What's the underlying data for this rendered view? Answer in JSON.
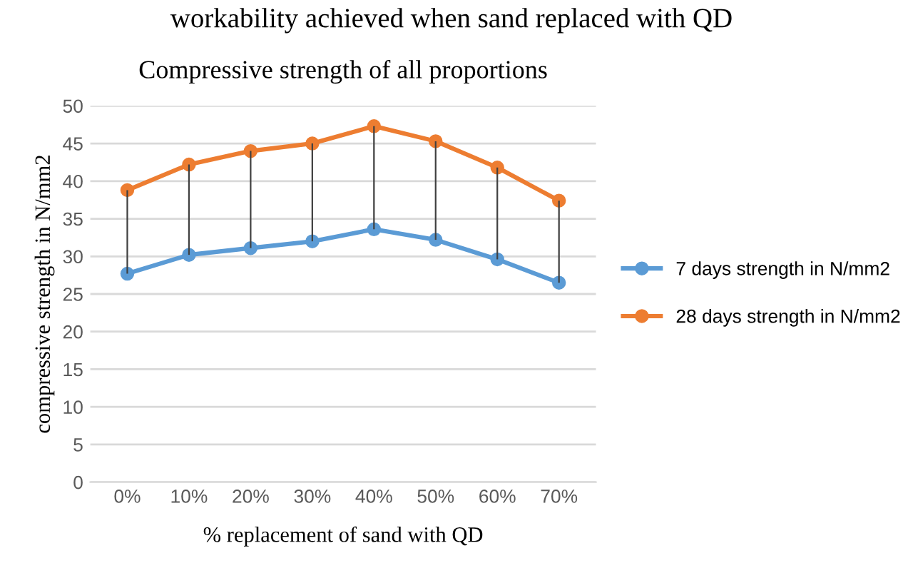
{
  "chart_data": {
    "type": "line",
    "title": "Compressive strength of all proportions",
    "xlabel": "% replacement of sand with QD",
    "ylabel": "compressive strength in N/mm2",
    "annotations": [
      "workability achieved when sand replaced with QD"
    ],
    "categories": [
      "0%",
      "10%",
      "20%",
      "30%",
      "40%",
      "50%",
      "60%",
      "70%"
    ],
    "series": [
      {
        "name": "7 days strength in N/mm2",
        "color": "#5b9bd5",
        "values": [
          27.7,
          30.2,
          31.1,
          32,
          33.6,
          32.2,
          29.6,
          26.5
        ],
        "errors": [
          [
            27.7,
            38.8
          ],
          [
            30.2,
            42.2
          ],
          [
            31.1,
            44
          ],
          [
            32,
            45
          ],
          [
            33.6,
            47.3
          ],
          [
            32.2,
            45.3
          ],
          [
            29.6,
            41.8
          ],
          [
            26.5,
            37.4
          ]
        ]
      },
      {
        "name": "28 days strength in N/mm2",
        "color": "#ed7d31",
        "values": [
          38.8,
          42.2,
          44,
          45,
          47.3,
          45.3,
          41.8,
          37.4
        ]
      }
    ],
    "ylim": [
      0,
      50
    ],
    "yticks": [
      0,
      5,
      10,
      15,
      20,
      25,
      30,
      35,
      40,
      45,
      50
    ],
    "grid": "y",
    "legend": "right",
    "marker": "circle",
    "line_style": "solid"
  }
}
